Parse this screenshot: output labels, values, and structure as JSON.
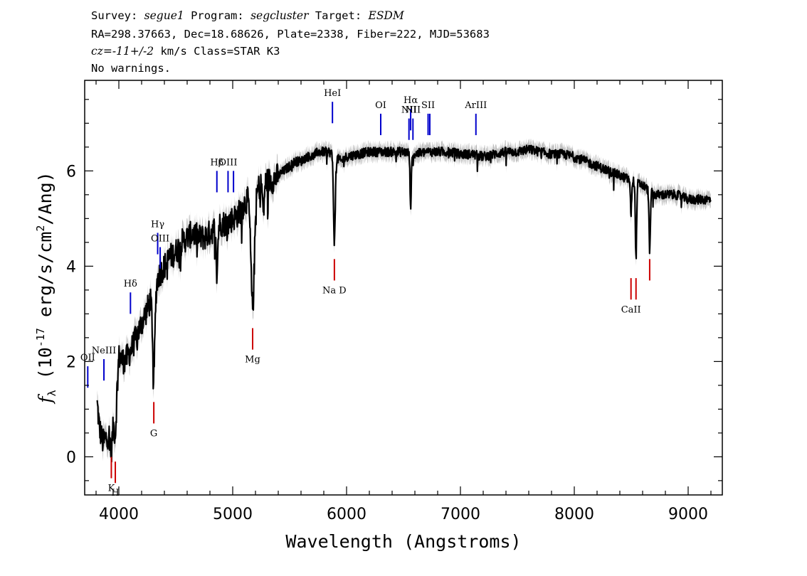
{
  "header": {
    "line1": {
      "survey_label": "Survey: ",
      "survey": "segue1",
      "program_label": " Program: ",
      "program": "segcluster",
      "target_label": " Target: ",
      "target": "ESDM"
    },
    "line2": "RA=298.37663, Dec=18.68626, Plate=2338, Fiber=222, MJD=53683",
    "line3": {
      "cz_label": "cz=",
      "cz_value": "-11+/-2",
      "cz_unit": " km/s Class=STAR K3"
    },
    "line4": "No warnings."
  },
  "chart_data": {
    "type": "line",
    "xlabel": "Wavelength (Angstroms)",
    "ylabel_parts": [
      "f",
      "λ",
      " (10",
      "-17",
      " erg/s/cm",
      "2",
      "/Ang)"
    ],
    "xlim": [
      3700,
      9300
    ],
    "ylim": [
      -0.8,
      7.9
    ],
    "x_ticks": [
      4000,
      5000,
      6000,
      7000,
      8000,
      9000
    ],
    "x_tick_labels": [
      "4000",
      "5000",
      "6000",
      "7000",
      "8000",
      "9000"
    ],
    "y_ticks": [
      0,
      2,
      4,
      6
    ],
    "y_tick_labels": [
      "0",
      "2",
      "4",
      "6"
    ],
    "colors": {
      "flux": "#000000",
      "error_band": "#c0c0c0",
      "emission": "#0000cc",
      "absorption": "#cc0000"
    },
    "continuum": {
      "x": [
        3810,
        3830,
        3860,
        3890,
        3920,
        3950,
        3970,
        4000,
        4050,
        4100,
        4150,
        4200,
        4250,
        4300,
        4350,
        4400,
        4450,
        4500,
        4550,
        4600,
        4650,
        4700,
        4750,
        4800,
        4850,
        4900,
        4950,
        5000,
        5050,
        5100,
        5150,
        5200,
        5250,
        5300,
        5350,
        5400,
        5450,
        5500,
        5550,
        5600,
        5650,
        5700,
        5750,
        5800,
        5850,
        5900,
        5950,
        6000,
        6100,
        6200,
        6300,
        6400,
        6500,
        6600,
        6700,
        6800,
        6900,
        7000,
        7100,
        7200,
        7300,
        7400,
        7500,
        7600,
        7700,
        7800,
        7900,
        8000,
        8100,
        8200,
        8300,
        8400,
        8500,
        8600,
        8700,
        8800,
        8900,
        9000,
        9100,
        9200
      ],
      "y": [
        1.1,
        0.6,
        0.3,
        0.4,
        0.5,
        0.7,
        0.9,
        2.1,
        2.0,
        2.2,
        2.5,
        2.8,
        3.1,
        3.4,
        3.8,
        4.0,
        4.2,
        4.3,
        4.5,
        4.6,
        4.7,
        4.6,
        4.6,
        4.7,
        4.8,
        4.9,
        4.9,
        5.0,
        5.1,
        5.3,
        5.5,
        5.6,
        5.7,
        5.8,
        5.8,
        5.9,
        6.0,
        6.1,
        6.2,
        6.2,
        6.3,
        6.3,
        6.4,
        6.4,
        6.4,
        6.3,
        6.2,
        6.3,
        6.35,
        6.4,
        6.4,
        6.4,
        6.4,
        6.35,
        6.4,
        6.4,
        6.4,
        6.35,
        6.35,
        6.3,
        6.35,
        6.4,
        6.4,
        6.45,
        6.4,
        6.35,
        6.35,
        6.3,
        6.2,
        6.1,
        6.0,
        5.9,
        5.8,
        5.7,
        5.5,
        5.5,
        5.5,
        5.4,
        5.4,
        5.4
      ]
    },
    "absorption_features": [
      {
        "x": 3934,
        "depth": 0.45,
        "width": 12
      },
      {
        "x": 3969,
        "depth": 0.4,
        "width": 12
      },
      {
        "x": 4307,
        "depth": 1.7,
        "width": 14
      },
      {
        "x": 4861,
        "depth": 1.0,
        "width": 10
      },
      {
        "x": 5175,
        "depth": 2.4,
        "width": 22
      },
      {
        "x": 5270,
        "depth": 0.6,
        "width": 10
      },
      {
        "x": 5893,
        "depth": 1.8,
        "width": 11
      },
      {
        "x": 6563,
        "depth": 1.1,
        "width": 8
      },
      {
        "x": 8498,
        "depth": 0.7,
        "width": 8
      },
      {
        "x": 8542,
        "depth": 1.6,
        "width": 8
      },
      {
        "x": 8662,
        "depth": 1.3,
        "width": 8
      }
    ],
    "emission_lines": [
      {
        "label": "OII",
        "wavelength": 3727,
        "y_top": 1.9,
        "y_bottom": 1.45
      },
      {
        "label": "NeIII",
        "wavelength": 3869,
        "y_top": 2.05,
        "y_bottom": 1.6
      },
      {
        "label": "Hδ",
        "wavelength": 4102,
        "y_top": 3.45,
        "y_bottom": 3.0
      },
      {
        "label": "Hγ",
        "wavelength": 4341,
        "y_top": 4.7,
        "y_bottom": 4.25
      },
      {
        "label": "OIII",
        "wavelength": 4363,
        "y_top": 4.4,
        "y_bottom": 3.95
      },
      {
        "label": "Hβ",
        "wavelength": 4861,
        "y_top": 6.0,
        "y_bottom": 5.55
      },
      {
        "label": "OIII",
        "wavelength": 4959,
        "y_top": 6.0,
        "y_bottom": 5.55
      },
      {
        "label": "",
        "wavelength": 5007,
        "y_top": 6.0,
        "y_bottom": 5.55
      },
      {
        "label": "HeI",
        "wavelength": 5876,
        "y_top": 7.45,
        "y_bottom": 7.0
      },
      {
        "label": "OI",
        "wavelength": 6300,
        "y_top": 7.2,
        "y_bottom": 6.75
      },
      {
        "label": "NII",
        "wavelength": 6548,
        "y_top": 7.1,
        "y_bottom": 6.65
      },
      {
        "label": "Hα",
        "wavelength": 6563,
        "y_top": 7.3,
        "y_bottom": 6.85
      },
      {
        "label": "NII",
        "wavelength": 6583,
        "y_top": 7.1,
        "y_bottom": 6.65
      },
      {
        "label": "SII",
        "wavelength": 6716,
        "y_top": 7.2,
        "y_bottom": 6.75
      },
      {
        "label": "",
        "wavelength": 6731,
        "y_top": 7.2,
        "y_bottom": 6.75
      },
      {
        "label": "ArIII",
        "wavelength": 7136,
        "y_top": 7.2,
        "y_bottom": 6.75
      }
    ],
    "absorption_lines": [
      {
        "label": "K",
        "wavelength": 3934,
        "y_top": 0.0,
        "y_bottom": -0.45
      },
      {
        "label": "H",
        "wavelength": 3969,
        "y_top": -0.1,
        "y_bottom": -0.55
      },
      {
        "label": "G",
        "wavelength": 4307,
        "y_top": 1.15,
        "y_bottom": 0.7
      },
      {
        "label": "Mg",
        "wavelength": 5175,
        "y_top": 2.7,
        "y_bottom": 2.25
      },
      {
        "label": "Na D",
        "wavelength": 5893,
        "y_top": 4.15,
        "y_bottom": 3.7
      },
      {
        "label": "CaII",
        "wavelength": 8498,
        "y_top": 3.75,
        "y_bottom": 3.3
      },
      {
        "label": "",
        "wavelength": 8542,
        "y_top": 3.75,
        "y_bottom": 3.3
      },
      {
        "label": "",
        "wavelength": 8662,
        "y_top": 4.15,
        "y_bottom": 3.7
      }
    ]
  }
}
